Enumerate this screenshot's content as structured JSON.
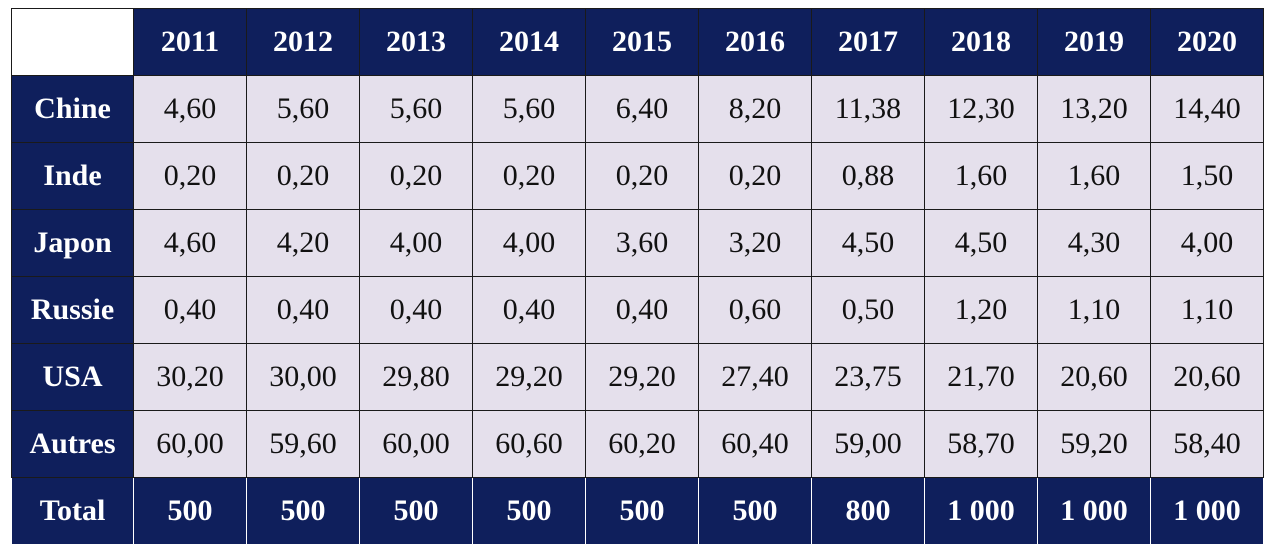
{
  "table": {
    "years": [
      "2011",
      "2012",
      "2013",
      "2014",
      "2015",
      "2016",
      "2017",
      "2018",
      "2019",
      "2020"
    ],
    "rows": [
      {
        "label": "Chine",
        "values": [
          "4,60",
          "5,60",
          "5,60",
          "5,60",
          "6,40",
          "8,20",
          "11,38",
          "12,30",
          "13,20",
          "14,40"
        ]
      },
      {
        "label": "Inde",
        "values": [
          "0,20",
          "0,20",
          "0,20",
          "0,20",
          "0,20",
          "0,20",
          "0,88",
          "1,60",
          "1,60",
          "1,50"
        ]
      },
      {
        "label": "Japon",
        "values": [
          "4,60",
          "4,20",
          "4,00",
          "4,00",
          "3,60",
          "3,20",
          "4,50",
          "4,50",
          "4,30",
          "4,00"
        ]
      },
      {
        "label": "Russie",
        "values": [
          "0,40",
          "0,40",
          "0,40",
          "0,40",
          "0,40",
          "0,60",
          "0,50",
          "1,20",
          "1,10",
          "1,10"
        ]
      },
      {
        "label": "USA",
        "values": [
          "30,20",
          "30,00",
          "29,80",
          "29,20",
          "29,20",
          "27,40",
          "23,75",
          "21,70",
          "20,60",
          "20,60"
        ]
      },
      {
        "label": "Autres",
        "values": [
          "60,00",
          "59,60",
          "60,00",
          "60,60",
          "60,20",
          "60,40",
          "59,00",
          "58,70",
          "59,20",
          "58,40"
        ]
      }
    ],
    "total": {
      "label": "Total",
      "values": [
        "500",
        "500",
        "500",
        "500",
        "500",
        "500",
        "800",
        "1 000",
        "1 000",
        "1 000"
      ]
    }
  },
  "colors": {
    "header_bg": "#0f1f5c",
    "cell_bg": "#e5e0ec",
    "header_text": "#ffffff"
  }
}
